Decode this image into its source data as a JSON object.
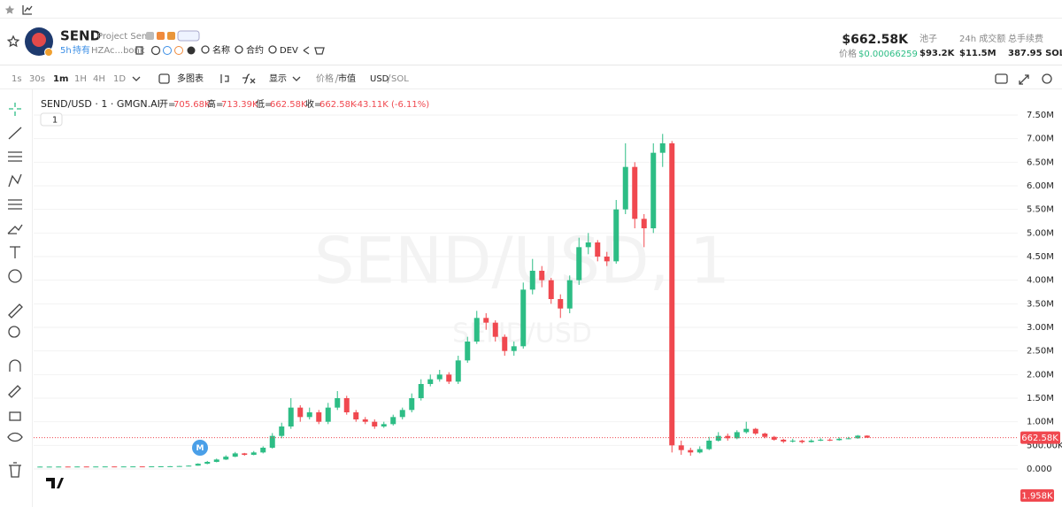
{
  "header": {
    "name": "SEND",
    "subtitle": "Project Send",
    "age": "5h",
    "holding": "持有",
    "address": "HZAc...bonk",
    "links": [
      "名称",
      "合约",
      "DEV"
    ],
    "price": "$662.58K",
    "price_label": "价格",
    "price_sol": "$0.00066259",
    "stats": [
      {
        "label": "池子",
        "value": "$93.2K"
      },
      {
        "label": "24h 成交额",
        "value": "$11.5M"
      },
      {
        "label": "总手续费",
        "value": "387.95 SOL"
      }
    ]
  },
  "toolbar": {
    "intervals": [
      "1s",
      "30s",
      "1m",
      "1H",
      "4H",
      "1D"
    ],
    "multi": "多图表",
    "display": "显示",
    "price_mode": [
      "价格",
      "市值"
    ],
    "currency": [
      "USD",
      "SOL"
    ]
  },
  "chart_data": {
    "type": "candlestick",
    "legend": {
      "symbol": "SEND/USD · 1 · GMGN.AI",
      "open_label": "开=",
      "open": "705.68K",
      "high_label": "高=",
      "high": "713.39K",
      "low_label": "低=",
      "low": "662.58K",
      "close_label": "收=",
      "close": "662.58K",
      "change": "-43.11K (-6.11%)",
      "button": "1"
    },
    "watermark": "SEND/USD, 1",
    "watermark_sub": "SEND/USD",
    "marker": "M",
    "up_color": "#2dbd85",
    "down_color": "#f0484f",
    "grid": true,
    "ylim": [
      -712500,
      7875000
    ],
    "yticks": [
      {
        "value": 0,
        "label": "0.000"
      },
      {
        "value": 500000,
        "label": "500.00K"
      },
      {
        "value": 1000000,
        "label": "1.00M"
      },
      {
        "value": 1500000,
        "label": "1.50M"
      },
      {
        "value": 2000000,
        "label": "2.00M"
      },
      {
        "value": 2500000,
        "label": "2.50M"
      },
      {
        "value": 3000000,
        "label": "3.00M"
      },
      {
        "value": 3500000,
        "label": "3.50M"
      },
      {
        "value": 4000000,
        "label": "4.00M"
      },
      {
        "value": 4500000,
        "label": "4.50M"
      },
      {
        "value": 5000000,
        "label": "5.00M"
      },
      {
        "value": 5500000,
        "label": "5.50M"
      },
      {
        "value": 6000000,
        "label": "6.00M"
      },
      {
        "value": 6500000,
        "label": "6.50M"
      },
      {
        "value": 7000000,
        "label": "7.00M"
      },
      {
        "value": 7500000,
        "label": "7.50M"
      }
    ],
    "price_line": {
      "value": 662580,
      "label": "662.58K"
    },
    "volume_label": "1.958K",
    "open": [
      50000,
      50000,
      50000,
      51000,
      50000,
      52000,
      51000,
      52000,
      53000,
      52000,
      53000,
      54000,
      53000,
      55000,
      56000,
      58000,
      62000,
      70000,
      110000,
      150000,
      200000,
      260000,
      330000,
      300000,
      350000,
      450000,
      700000,
      900000,
      1300000,
      1100000,
      1200000,
      1000000,
      1300000,
      1500000,
      1200000,
      1050000,
      1000000,
      900000,
      950000,
      1100000,
      1250000,
      1500000,
      1800000,
      1900000,
      2000000,
      1850000,
      2300000,
      2700000,
      3200000,
      3100000,
      2800000,
      2500000,
      2600000,
      3800000,
      4200000,
      4000000,
      3600000,
      3400000,
      4000000,
      4700000,
      4800000,
      4500000,
      4400000,
      5500000,
      6400000,
      5300000,
      5100000,
      6700000,
      6900000,
      500000,
      400000,
      350000,
      420000,
      600000,
      700000,
      650000,
      780000,
      850000,
      750000,
      680000,
      620000,
      580000,
      600000,
      570000,
      600000,
      620000,
      610000,
      640000,
      650000,
      705680
    ],
    "high": [
      52000,
      51000,
      52000,
      52000,
      53000,
      53000,
      53000,
      54000,
      54000,
      54000,
      55000,
      55000,
      56000,
      57000,
      60000,
      65000,
      75000,
      120000,
      170000,
      220000,
      290000,
      360000,
      340000,
      380000,
      480000,
      760000,
      980000,
      1500000,
      1350000,
      1300000,
      1250000,
      1400000,
      1650000,
      1550000,
      1250000,
      1100000,
      1050000,
      1000000,
      1150000,
      1300000,
      1600000,
      1900000,
      2000000,
      2100000,
      2050000,
      2400000,
      2800000,
      3350000,
      3300000,
      3150000,
      2850000,
      2700000,
      3950000,
      4450000,
      4300000,
      4050000,
      3700000,
      4100000,
      4900000,
      5000000,
      4850000,
      4600000,
      5700000,
      6900000,
      6500000,
      5400000,
      6900000,
      7100000,
      6950000,
      600000,
      450000,
      480000,
      680000,
      780000,
      750000,
      820000,
      1000000,
      870000,
      770000,
      700000,
      640000,
      640000,
      620000,
      630000,
      650000,
      650000,
      670000,
      680000,
      720000,
      713390
    ],
    "low": [
      48000,
      49000,
      49000,
      49000,
      49000,
      50000,
      50000,
      51000,
      51000,
      51000,
      52000,
      52000,
      52000,
      54000,
      55000,
      57000,
      60000,
      68000,
      100000,
      140000,
      190000,
      250000,
      280000,
      290000,
      330000,
      430000,
      650000,
      850000,
      1000000,
      1050000,
      950000,
      950000,
      1250000,
      1150000,
      1000000,
      950000,
      850000,
      870000,
      920000,
      1050000,
      1200000,
      1450000,
      1750000,
      1850000,
      1800000,
      1800000,
      2250000,
      2650000,
      2950000,
      2700000,
      2400000,
      2400000,
      2550000,
      3700000,
      3850000,
      3500000,
      3200000,
      3300000,
      3900000,
      4550000,
      4400000,
      4300000,
      4350000,
      5400000,
      5100000,
      4700000,
      5000000,
      6400000,
      350000,
      300000,
      280000,
      330000,
      400000,
      580000,
      600000,
      630000,
      750000,
      720000,
      650000,
      600000,
      550000,
      560000,
      540000,
      560000,
      590000,
      590000,
      600000,
      630000,
      640000,
      662580
    ],
    "close": [
      50000,
      50000,
      51000,
      50000,
      52000,
      51000,
      52000,
      53000,
      52000,
      53000,
      54000,
      53000,
      55000,
      56000,
      58000,
      62000,
      70000,
      110000,
      150000,
      200000,
      260000,
      330000,
      300000,
      350000,
      450000,
      700000,
      900000,
      1300000,
      1100000,
      1200000,
      1000000,
      1300000,
      1500000,
      1200000,
      1050000,
      1000000,
      900000,
      950000,
      1100000,
      1250000,
      1500000,
      1800000,
      1900000,
      2000000,
      1850000,
      2300000,
      2700000,
      3200000,
      3100000,
      2800000,
      2500000,
      2600000,
      3800000,
      4200000,
      4000000,
      3600000,
      3400000,
      4000000,
      4700000,
      4800000,
      4500000,
      4400000,
      5500000,
      6400000,
      5300000,
      5100000,
      6700000,
      6900000,
      500000,
      400000,
      350000,
      420000,
      600000,
      700000,
      650000,
      780000,
      850000,
      750000,
      680000,
      620000,
      580000,
      600000,
      570000,
      600000,
      620000,
      610000,
      640000,
      650000,
      705680,
      662580
    ]
  }
}
